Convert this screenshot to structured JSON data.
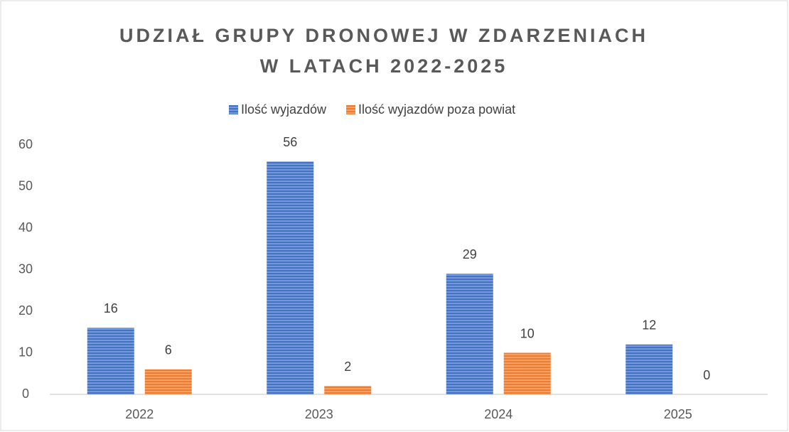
{
  "chart_data": {
    "type": "bar",
    "title": [
      "UDZIAŁ GRUPY DRONOWEJ W ZDARZENIACH",
      "W LATACH 2022-2025"
    ],
    "categories": [
      "2022",
      "2023",
      "2024",
      "2025"
    ],
    "series": [
      {
        "name": "Ilość wyjazdów",
        "color": "#4472c4",
        "values": [
          16,
          56,
          29,
          12
        ]
      },
      {
        "name": "Ilość wyjazdów poza powiat",
        "color": "#ed7d31",
        "values": [
          6,
          2,
          10,
          0
        ]
      }
    ],
    "ylim": [
      0,
      60
    ],
    "yticks": [
      0,
      10,
      20,
      30,
      40,
      50,
      60
    ],
    "grid": false,
    "legend": "top"
  }
}
